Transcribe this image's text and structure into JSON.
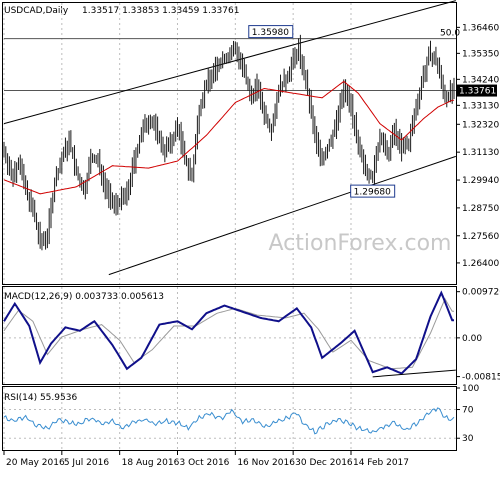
{
  "header": {
    "symbol": "USDCAD,Daily",
    "ohlc": "1.33517 1.33853 1.33459 1.33761"
  },
  "watermark": "ActionForex.com",
  "chart_data": [
    {
      "type": "line",
      "panel": "price",
      "ylim": [
        1.255,
        1.375
      ],
      "y_ticks": [
        "1.36460",
        "1.35350",
        "1.34240",
        "1.33130",
        "1.32320",
        "1.31130",
        "1.29940",
        "1.28750",
        "1.27560",
        "1.26400"
      ],
      "x_tick_labels": [
        "20 May 2016",
        "5 Jul 2016",
        "18 Aug 2016",
        "3 Oct 2016",
        "16 Nov 2016",
        "30 Dec 2016",
        "14 Feb 2017"
      ],
      "x_tick_positions": [
        0,
        32,
        64,
        96,
        128,
        160,
        192
      ],
      "current_price": "1.33761",
      "current_price_value": 1.33761,
      "fib_label": "50.0",
      "fib_level": 1.3598,
      "annotations": [
        {
          "text": "1.35980",
          "index": 162,
          "value": 1.3598
        },
        {
          "text": "1.29680",
          "index": 204,
          "value": 1.2968
        }
      ],
      "channel_lines": [
        {
          "x1": 0,
          "y1": 1.3235,
          "x2": 250,
          "y2": 1.376
        },
        {
          "x1": 58,
          "y1": 1.259,
          "x2": 250,
          "y2": 1.3095
        }
      ],
      "anchors_close": [
        [
          0,
          1.3125
        ],
        [
          4,
          1.3005
        ],
        [
          8,
          1.3075
        ],
        [
          12,
          1.2955
        ],
        [
          16,
          1.2865
        ],
        [
          20,
          1.2725
        ],
        [
          24,
          1.2765
        ],
        [
          28,
          1.2985
        ],
        [
          32,
          1.3085
        ],
        [
          36,
          1.3165
        ],
        [
          40,
          1.3025
        ],
        [
          44,
          1.2945
        ],
        [
          48,
          1.3085
        ],
        [
          52,
          1.3075
        ],
        [
          56,
          1.2965
        ],
        [
          60,
          1.2885
        ],
        [
          64,
          1.2905
        ],
        [
          68,
          1.2935
        ],
        [
          72,
          1.3075
        ],
        [
          76,
          1.3195
        ],
        [
          80,
          1.3255
        ],
        [
          84,
          1.3215
        ],
        [
          88,
          1.3125
        ],
        [
          92,
          1.3145
        ],
        [
          96,
          1.3225
        ],
        [
          100,
          1.3085
        ],
        [
          104,
          1.3005
        ],
        [
          108,
          1.3305
        ],
        [
          112,
          1.3405
        ],
        [
          116,
          1.3455
        ],
        [
          120,
          1.3505
        ],
        [
          124,
          1.3525
        ],
        [
          128,
          1.3555
        ],
        [
          132,
          1.3475
        ],
        [
          136,
          1.3355
        ],
        [
          140,
          1.3395
        ],
        [
          144,
          1.3275
        ],
        [
          148,
          1.3215
        ],
        [
          152,
          1.3385
        ],
        [
          156,
          1.3425
        ],
        [
          160,
          1.3505
        ],
        [
          163,
          1.3555
        ],
        [
          166,
          1.3445
        ],
        [
          169,
          1.3325
        ],
        [
          172,
          1.3175
        ],
        [
          176,
          1.3085
        ],
        [
          180,
          1.3145
        ],
        [
          184,
          1.3245
        ],
        [
          188,
          1.3385
        ],
        [
          192,
          1.3315
        ],
        [
          196,
          1.3125
        ],
        [
          200,
          1.3045
        ],
        [
          204,
          1.3005
        ],
        [
          208,
          1.3185
        ],
        [
          212,
          1.3095
        ],
        [
          216,
          1.3205
        ],
        [
          220,
          1.3125
        ],
        [
          224,
          1.3155
        ],
        [
          228,
          1.3305
        ],
        [
          232,
          1.3445
        ],
        [
          236,
          1.3535
        ],
        [
          240,
          1.3485
        ],
        [
          244,
          1.3345
        ],
        [
          248,
          1.3376
        ]
      ],
      "anchors_ma": [
        [
          0,
          1.2995
        ],
        [
          20,
          1.2935
        ],
        [
          40,
          1.2965
        ],
        [
          60,
          1.3055
        ],
        [
          80,
          1.3045
        ],
        [
          96,
          1.3075
        ],
        [
          112,
          1.3185
        ],
        [
          128,
          1.3325
        ],
        [
          144,
          1.3385
        ],
        [
          160,
          1.3365
        ],
        [
          176,
          1.3345
        ],
        [
          188,
          1.3415
        ],
        [
          196,
          1.3365
        ],
        [
          208,
          1.3235
        ],
        [
          220,
          1.3165
        ],
        [
          232,
          1.3255
        ],
        [
          240,
          1.3305
        ],
        [
          248,
          1.3335
        ]
      ]
    },
    {
      "type": "line",
      "panel": "macd",
      "title": "MACD(12,26,9) 0.003733 0.005613",
      "ylim": [
        -0.0095,
        0.0105
      ],
      "y_ticks": [
        "0.009726",
        "0.00",
        "-0.008153"
      ],
      "anchors_macd": [
        [
          0,
          0.0035
        ],
        [
          6,
          0.0072
        ],
        [
          14,
          0.0025
        ],
        [
          20,
          -0.0052
        ],
        [
          26,
          -0.0012
        ],
        [
          34,
          0.0022
        ],
        [
          42,
          0.0015
        ],
        [
          50,
          0.0035
        ],
        [
          60,
          -0.0015
        ],
        [
          68,
          -0.0065
        ],
        [
          76,
          -0.0042
        ],
        [
          86,
          0.0028
        ],
        [
          96,
          0.0035
        ],
        [
          104,
          0.0018
        ],
        [
          112,
          0.0052
        ],
        [
          122,
          0.0068
        ],
        [
          132,
          0.0055
        ],
        [
          142,
          0.0042
        ],
        [
          152,
          0.0035
        ],
        [
          162,
          0.0062
        ],
        [
          170,
          0.0022
        ],
        [
          176,
          -0.0042
        ],
        [
          186,
          -0.0012
        ],
        [
          194,
          0.0015
        ],
        [
          204,
          -0.0072
        ],
        [
          212,
          -0.0062
        ],
        [
          220,
          -0.0075
        ],
        [
          228,
          -0.0045
        ],
        [
          236,
          0.0045
        ],
        [
          242,
          0.0095
        ],
        [
          248,
          0.0037
        ]
      ],
      "anchors_signal": [
        [
          0,
          0.0015
        ],
        [
          8,
          0.0058
        ],
        [
          16,
          0.0035
        ],
        [
          24,
          -0.0035
        ],
        [
          32,
          0.0002
        ],
        [
          44,
          0.0018
        ],
        [
          54,
          0.0028
        ],
        [
          64,
          -0.0005
        ],
        [
          72,
          -0.0052
        ],
        [
          82,
          -0.0025
        ],
        [
          94,
          0.0025
        ],
        [
          106,
          0.0025
        ],
        [
          118,
          0.0052
        ],
        [
          128,
          0.0062
        ],
        [
          140,
          0.0048
        ],
        [
          156,
          0.0042
        ],
        [
          166,
          0.0052
        ],
        [
          174,
          0.0018
        ],
        [
          182,
          -0.003
        ],
        [
          192,
          -0.0005
        ],
        [
          202,
          -0.0048
        ],
        [
          214,
          -0.0065
        ],
        [
          226,
          -0.0062
        ],
        [
          236,
          0.001
        ],
        [
          244,
          0.0082
        ],
        [
          248,
          0.0056
        ]
      ],
      "trend_line": {
        "x1": 204,
        "y1": -0.0082,
        "x2": 250,
        "y2": -0.0068
      }
    },
    {
      "type": "line",
      "panel": "rsi",
      "title": "RSI(14) 55.9536",
      "ylim": [
        15,
        100
      ],
      "y_ticks": [
        "100",
        "70",
        "30"
      ],
      "anchors_rsi": [
        [
          0,
          58
        ],
        [
          6,
          54
        ],
        [
          12,
          60
        ],
        [
          18,
          48
        ],
        [
          24,
          44
        ],
        [
          30,
          56
        ],
        [
          36,
          52
        ],
        [
          42,
          50
        ],
        [
          48,
          58
        ],
        [
          54,
          50
        ],
        [
          60,
          54
        ],
        [
          66,
          44
        ],
        [
          72,
          52
        ],
        [
          78,
          56
        ],
        [
          84,
          50
        ],
        [
          90,
          54
        ],
        [
          96,
          52
        ],
        [
          102,
          44
        ],
        [
          108,
          58
        ],
        [
          114,
          64
        ],
        [
          120,
          58
        ],
        [
          126,
          68
        ],
        [
          132,
          52
        ],
        [
          138,
          56
        ],
        [
          144,
          46
        ],
        [
          150,
          52
        ],
        [
          156,
          58
        ],
        [
          162,
          66
        ],
        [
          166,
          50
        ],
        [
          172,
          38
        ],
        [
          178,
          48
        ],
        [
          184,
          56
        ],
        [
          190,
          52
        ],
        [
          196,
          44
        ],
        [
          204,
          38
        ],
        [
          210,
          46
        ],
        [
          216,
          52
        ],
        [
          222,
          42
        ],
        [
          228,
          50
        ],
        [
          234,
          64
        ],
        [
          240,
          72
        ],
        [
          244,
          58
        ],
        [
          248,
          56
        ]
      ]
    }
  ],
  "colors": {
    "candles": "#1a1a1a",
    "ma": "#d00000",
    "macd": "#10108a",
    "signal": "#9a9a9a",
    "rsi": "#3a8ed0",
    "price_box": "#000000",
    "watermark": "#c8c8c8"
  }
}
